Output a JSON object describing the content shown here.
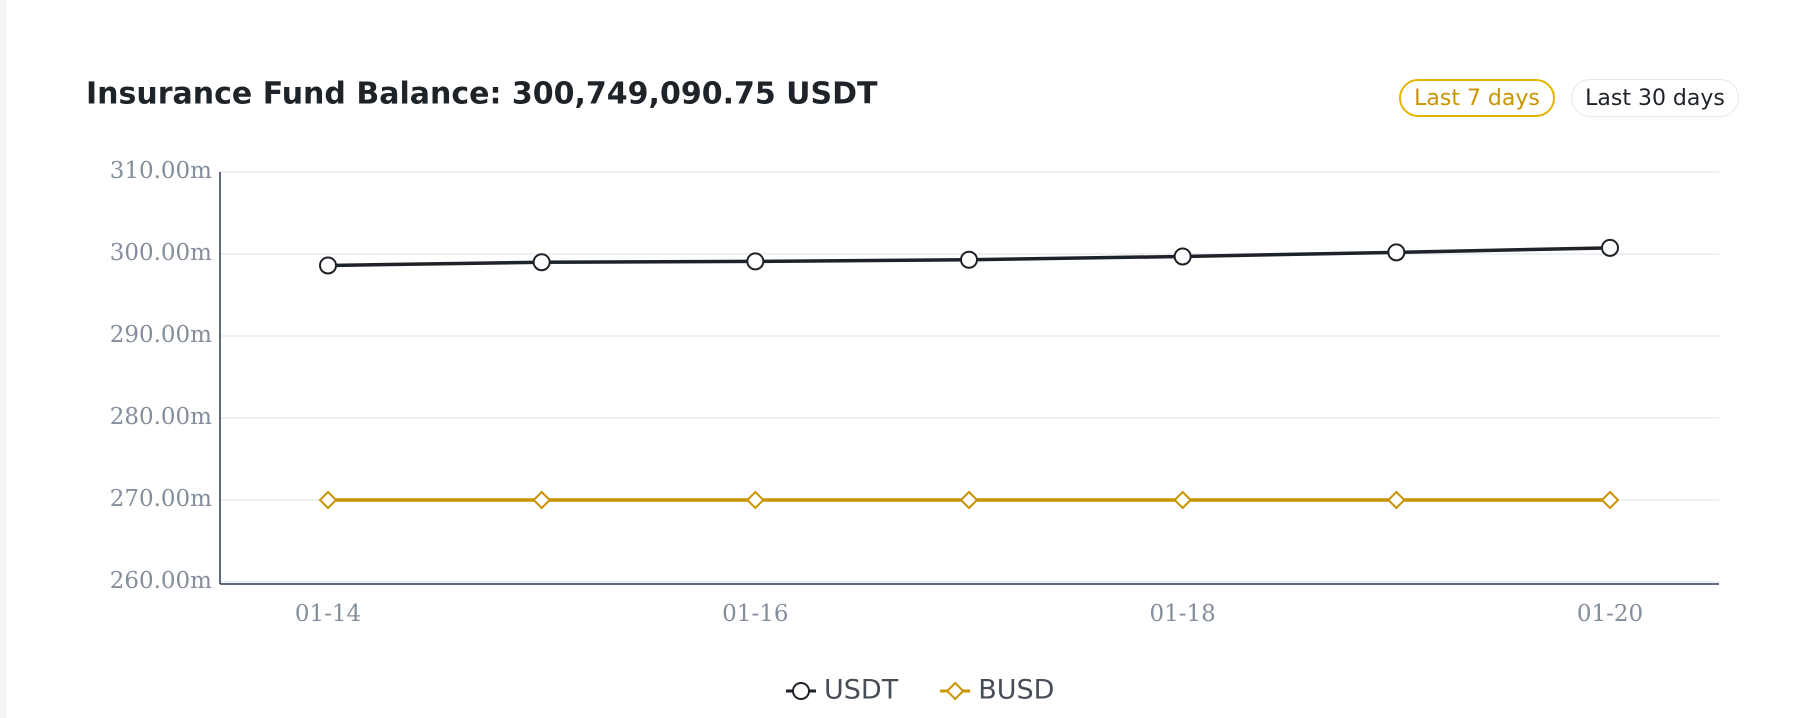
{
  "chart_data": {
    "type": "line",
    "title": "Insurance Fund Balance: 300,749,090.75 USDT",
    "categories": [
      "01-14",
      null,
      "01-16",
      null,
      "01-18",
      null,
      "01-20"
    ],
    "series": [
      {
        "name": "USDT",
        "color": "#1e2329",
        "marker": "circle",
        "values": [
          298.6,
          299.0,
          299.1,
          299.3,
          299.7,
          300.2,
          300.75
        ]
      },
      {
        "name": "BUSD",
        "color": "#c99400",
        "marker": "diamond",
        "values": [
          270,
          270,
          270,
          270,
          270,
          270,
          270
        ]
      }
    ],
    "ylim": [
      260,
      310
    ],
    "yticks": [
      {
        "value": 260,
        "label": "260.00m"
      },
      {
        "value": 270,
        "label": "270.00m"
      },
      {
        "value": 280,
        "label": "280.00m"
      },
      {
        "value": 290,
        "label": "290.00m"
      },
      {
        "value": 300,
        "label": "300.00m"
      },
      {
        "value": 310,
        "label": "310.00m"
      }
    ],
    "grid": true,
    "legend": "bottom"
  },
  "controls": [
    "Last 7 days",
    "Last 30 days"
  ]
}
